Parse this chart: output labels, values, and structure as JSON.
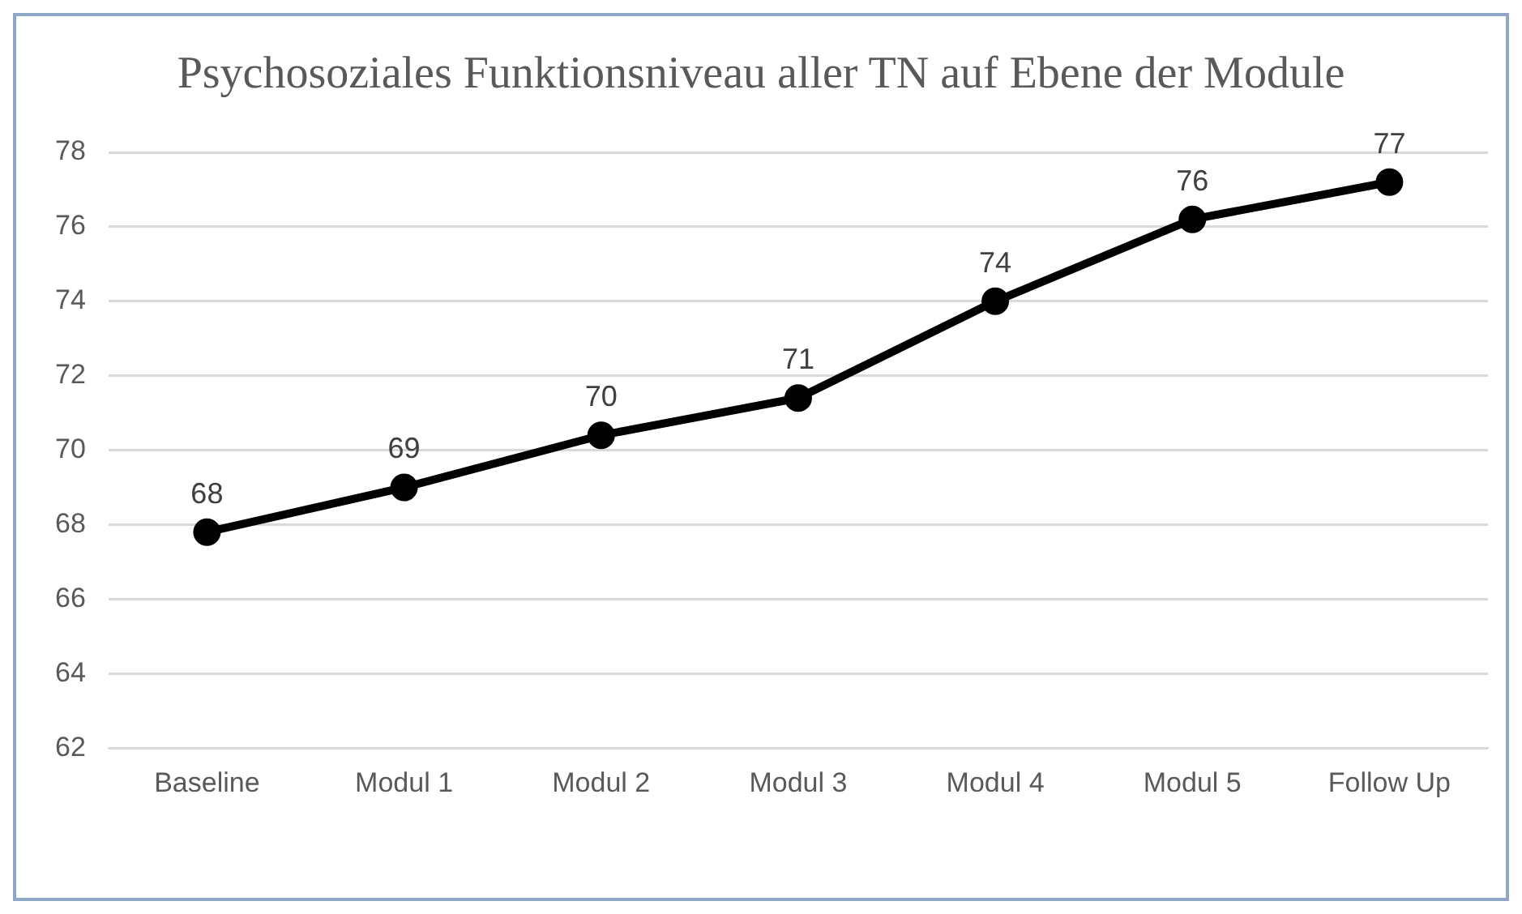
{
  "chart_data": {
    "type": "line",
    "title": "Psychosoziales Funktionsniveau aller TN auf Ebene der Module",
    "categories": [
      "Baseline",
      "Modul 1",
      "Modul 2",
      "Modul 3",
      "Modul 4",
      "Modul 5",
      "Follow Up"
    ],
    "values": [
      67.8,
      69.0,
      70.4,
      71.4,
      74.0,
      76.2,
      77.2
    ],
    "value_labels": [
      "68",
      "69",
      "70",
      "71",
      "74",
      "76",
      "77"
    ],
    "color": "#000000",
    "ylim": [
      62,
      78
    ],
    "yticks": [
      62,
      64,
      66,
      68,
      70,
      72,
      74,
      76,
      78
    ],
    "grid": "y",
    "marker": "circle"
  }
}
